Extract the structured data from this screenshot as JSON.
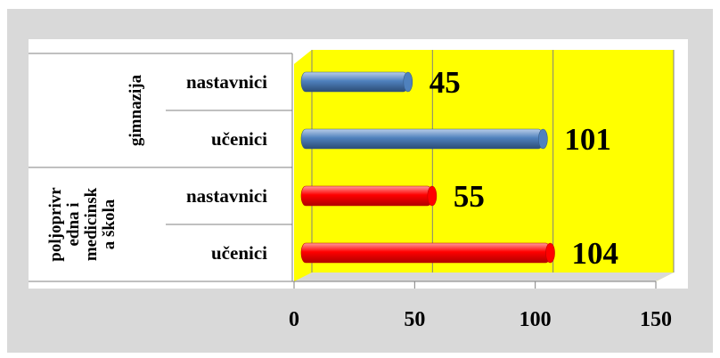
{
  "chart_data": {
    "type": "bar",
    "orientation": "horizontal",
    "groups": [
      {
        "name": "gimnazija",
        "lines": [
          "gimnazija"
        ]
      },
      {
        "name": "poljoprivredna i medicinska škola",
        "lines": [
          "poljoprivr",
          "edna i",
          "medicinsk",
          "a škola"
        ]
      }
    ],
    "categories": [
      "nastavnici",
      "učenici",
      "nastavnici",
      "učenici"
    ],
    "category_groups": [
      0,
      0,
      1,
      1
    ],
    "values": [
      45,
      101,
      55,
      104
    ],
    "data_labels": [
      "45",
      "101",
      "55",
      "104"
    ],
    "bar_colors": [
      "#4f81bd",
      "#4f81bd",
      "#ff0000",
      "#ff0000"
    ],
    "xlim": [
      0,
      150
    ],
    "xticks": [
      0,
      50,
      100,
      150
    ],
    "xtick_labels": [
      "0",
      "50",
      "100",
      "150"
    ],
    "grid": true,
    "plot_background": "#ffff00",
    "chart_background": "#d9d9d9",
    "title": "",
    "xlabel": "",
    "ylabel": ""
  }
}
